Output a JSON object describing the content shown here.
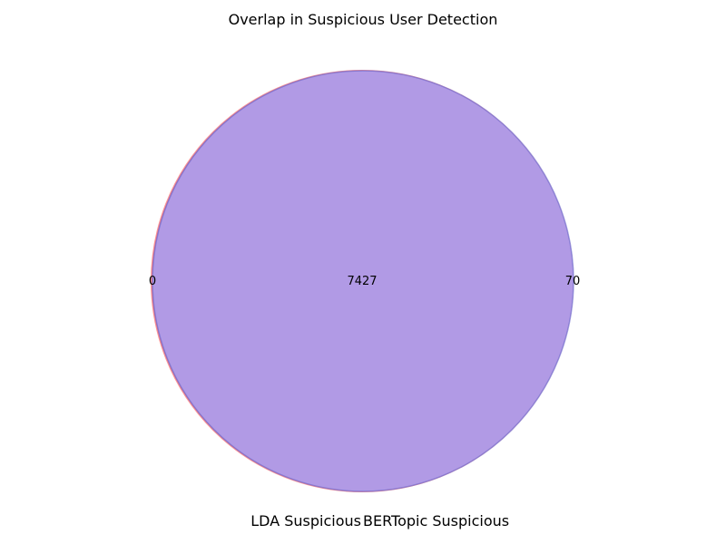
{
  "chart_data": {
    "type": "venn",
    "title": "Overlap in Suspicious User Detection",
    "sets": [
      {
        "name": "LDA Suspicious",
        "color": "#ff6666"
      },
      {
        "name": "BERTopic Suspicious",
        "color": "#6666cc"
      }
    ],
    "regions": {
      "only_a": "0",
      "intersection": "7427",
      "only_b": "70"
    },
    "colors": {
      "overlap_fill": "#b19ae5"
    }
  }
}
